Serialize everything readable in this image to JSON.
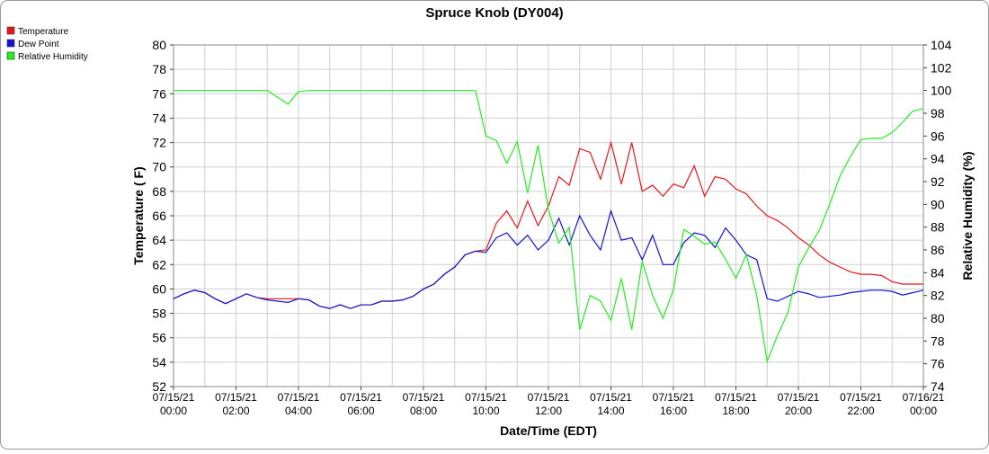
{
  "chart_data": {
    "type": "line",
    "title": "Spruce Knob (DY004)",
    "x_label": "Date/Time (EDT)",
    "y_label": "Temperature ( F)",
    "y2_label": "Relative Humidity (%)",
    "x": [
      0,
      20,
      40,
      60,
      80,
      100,
      120,
      140,
      160,
      180,
      200,
      220,
      240,
      260,
      280,
      300,
      320,
      340,
      360,
      380,
      400,
      420,
      440,
      460,
      480,
      500,
      520,
      540,
      560,
      580,
      600,
      620,
      640,
      660,
      680,
      700,
      720,
      740,
      760,
      780,
      800,
      820,
      840,
      860,
      880,
      900,
      920,
      940,
      960,
      980,
      1000,
      1020,
      1040,
      1060,
      1080,
      1100,
      1120,
      1140,
      1160,
      1180,
      1200,
      1220,
      1240,
      1260,
      1280,
      1300,
      1320,
      1340,
      1360,
      1380,
      1400,
      1420,
      1440
    ],
    "series": [
      {
        "name": "Temperature",
        "color": "#e8161b",
        "values": [
          59.2,
          59.6,
          59.9,
          59.7,
          59.2,
          58.8,
          59.2,
          59.6,
          59.3,
          59.2,
          59.2,
          59.2,
          59.2,
          59.1,
          58.6,
          58.4,
          58.7,
          58.4,
          58.7,
          58.7,
          59.0,
          59.0,
          59.1,
          59.4,
          60.0,
          60.4,
          61.2,
          61.8,
          62.8,
          63.1,
          63.2,
          65.4,
          66.4,
          65.0,
          67.2,
          65.2,
          66.8,
          69.2,
          68.5,
          71.5,
          71.2,
          69.0,
          72.0,
          68.6,
          72.0,
          68.0,
          68.5,
          67.6,
          68.6,
          68.3,
          70.1,
          67.6,
          69.2,
          69.0,
          68.2,
          67.8,
          66.8,
          66.0,
          65.6,
          65.0,
          64.2,
          63.6,
          62.8,
          62.2,
          61.8,
          61.4,
          61.2,
          61.2,
          61.1,
          60.6,
          60.4,
          60.4,
          60.4
        ]
      },
      {
        "name": "Dew Point",
        "color": "#1414d2",
        "values": [
          59.2,
          59.6,
          59.9,
          59.7,
          59.2,
          58.8,
          59.2,
          59.6,
          59.3,
          59.1,
          59.0,
          58.9,
          59.2,
          59.1,
          58.6,
          58.4,
          58.7,
          58.4,
          58.7,
          58.7,
          59.0,
          59.0,
          59.1,
          59.4,
          60.0,
          60.4,
          61.2,
          61.8,
          62.8,
          63.1,
          63.0,
          64.2,
          64.6,
          63.6,
          64.4,
          63.2,
          64.0,
          65.8,
          63.6,
          66.0,
          64.4,
          63.2,
          66.4,
          64.0,
          64.2,
          62.4,
          64.4,
          62.0,
          62.0,
          63.8,
          64.6,
          64.4,
          63.4,
          65.0,
          64.0,
          62.8,
          62.4,
          59.2,
          59.0,
          59.4,
          59.8,
          59.6,
          59.3,
          59.4,
          59.5,
          59.7,
          59.8,
          59.9,
          59.9,
          59.8,
          59.5,
          59.7,
          59.9
        ]
      },
      {
        "name": "Relative Humidity",
        "color": "#22ee22",
        "axis": "y2",
        "values": [
          100,
          100,
          100,
          100,
          100,
          100,
          100,
          100,
          100,
          100,
          99.4,
          98.8,
          99.9,
          100,
          100,
          100,
          100,
          100,
          100,
          100,
          100,
          100,
          100,
          100,
          100,
          100,
          100,
          100,
          100,
          100,
          96,
          95.6,
          93.6,
          95.5,
          91.0,
          95.2,
          89.5,
          86.6,
          88.0,
          79.0,
          82.0,
          81.5,
          79.8,
          83.5,
          79.0,
          85.0,
          82.0,
          80.0,
          82.5,
          87.8,
          87.2,
          86.5,
          86.7,
          85.2,
          83.5,
          85.6,
          82.0,
          76.2,
          78.5,
          80.5,
          84.5,
          86.2,
          87.7,
          90.0,
          92.5,
          94.2,
          95.7,
          95.8,
          95.8,
          96.3,
          97.2,
          98.2,
          98.4
        ]
      }
    ],
    "xlim": [
      0,
      1440
    ],
    "xticks": [
      {
        "value": 0,
        "label": [
          "07/15/21",
          "00:00"
        ]
      },
      {
        "value": 120,
        "label": [
          "07/15/21",
          "02:00"
        ]
      },
      {
        "value": 240,
        "label": [
          "07/15/21",
          "04:00"
        ]
      },
      {
        "value": 360,
        "label": [
          "07/15/21",
          "06:00"
        ]
      },
      {
        "value": 480,
        "label": [
          "07/15/21",
          "08:00"
        ]
      },
      {
        "value": 600,
        "label": [
          "07/15/21",
          "10:00"
        ]
      },
      {
        "value": 720,
        "label": [
          "07/15/21",
          "12:00"
        ]
      },
      {
        "value": 840,
        "label": [
          "07/15/21",
          "14:00"
        ]
      },
      {
        "value": 960,
        "label": [
          "07/15/21",
          "16:00"
        ]
      },
      {
        "value": 1080,
        "label": [
          "07/15/21",
          "18:00"
        ]
      },
      {
        "value": 1200,
        "label": [
          "07/15/21",
          "20:00"
        ]
      },
      {
        "value": 1320,
        "label": [
          "07/15/21",
          "22:00"
        ]
      },
      {
        "value": 1440,
        "label": [
          "07/16/21",
          "00:00"
        ]
      }
    ],
    "xminorticks": [
      60,
      180,
      300,
      420,
      540,
      660,
      780,
      900,
      1020,
      1140,
      1260,
      1380
    ],
    "ylim": [
      52,
      80
    ],
    "yticks": [
      52,
      54,
      56,
      58,
      60,
      62,
      64,
      66,
      68,
      70,
      72,
      74,
      76,
      78,
      80
    ],
    "y2lim": [
      74,
      104
    ],
    "y2ticks": [
      74,
      76,
      78,
      80,
      82,
      84,
      86,
      88,
      90,
      92,
      94,
      96,
      98,
      100,
      102,
      104
    ],
    "grid": true,
    "legend": "top-left"
  }
}
